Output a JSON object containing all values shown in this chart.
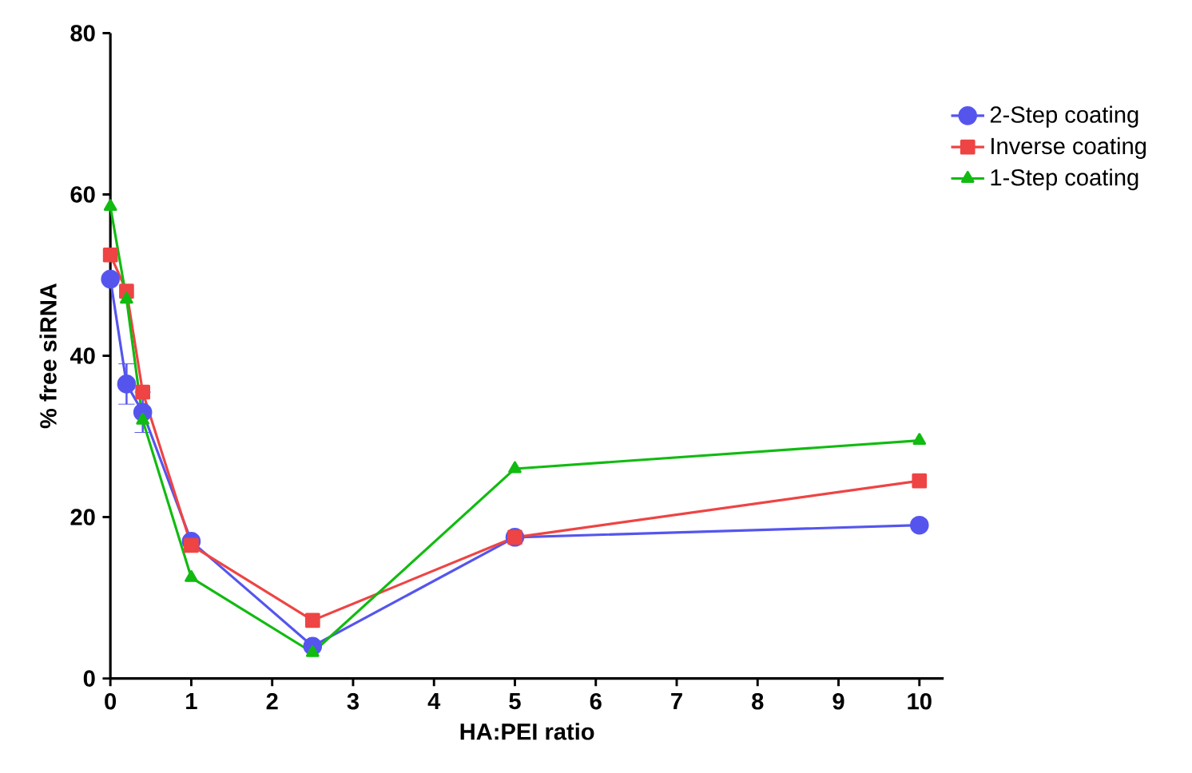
{
  "chart_data": {
    "type": "line",
    "xlabel": "HA:PEI ratio",
    "ylabel": "% free siRNA",
    "xlim": [
      0,
      10.3
    ],
    "xticks": [
      0,
      1,
      2,
      3,
      4,
      5,
      6,
      7,
      8,
      9,
      10
    ],
    "ylim": [
      0,
      80
    ],
    "yticks": [
      0,
      20,
      40,
      60,
      80
    ],
    "grid": false,
    "legend": "top right",
    "x": [
      0,
      0.2,
      0.4,
      1,
      2.5,
      5,
      10
    ],
    "series": [
      {
        "name": "2-Step coating",
        "color": "#5555ee",
        "marker": "circle",
        "values": [
          49.5,
          36.5,
          33,
          17,
          4,
          17.5,
          19
        ],
        "errors": [
          null,
          2.5,
          2.5,
          null,
          null,
          null,
          null
        ]
      },
      {
        "name": "Inverse coating",
        "color": "#ee4444",
        "marker": "square",
        "values": [
          52.5,
          48,
          35.5,
          16.5,
          7.2,
          17.5,
          24.5
        ]
      },
      {
        "name": "1-Step coating",
        "color": "#11bb11",
        "marker": "triangle",
        "values": [
          58.5,
          47,
          32,
          12.5,
          3.2,
          26,
          29.5
        ]
      }
    ]
  }
}
